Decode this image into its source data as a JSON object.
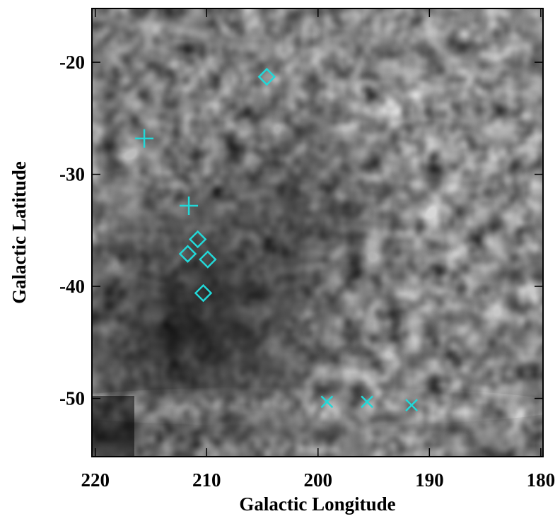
{
  "chart_data": {
    "type": "scatter",
    "xlabel": "Galactic Longitude",
    "ylabel": "Galactic Latitude",
    "xlim": [
      220.3,
      179.8
    ],
    "ylim": [
      -55.2,
      -15.2
    ],
    "xticks": [
      220,
      210,
      200,
      190,
      180
    ],
    "yticks": [
      -20,
      -30,
      -40,
      -50
    ],
    "series": [
      {
        "marker": "diamond",
        "color": "#22d8d8",
        "x": [
          204.6,
          210.8,
          211.7,
          209.9,
          210.3
        ],
        "y": [
          -21.3,
          -35.8,
          -37.1,
          -37.6,
          -40.6
        ]
      },
      {
        "marker": "plus",
        "color": "#22d8d8",
        "x": [
          215.6,
          211.6
        ],
        "y": [
          -26.8,
          -32.8
        ]
      },
      {
        "marker": "x",
        "color": "#22d8d8",
        "x": [
          199.2,
          195.6,
          191.6
        ],
        "y": [
          -50.3,
          -50.3,
          -50.6
        ]
      }
    ]
  }
}
